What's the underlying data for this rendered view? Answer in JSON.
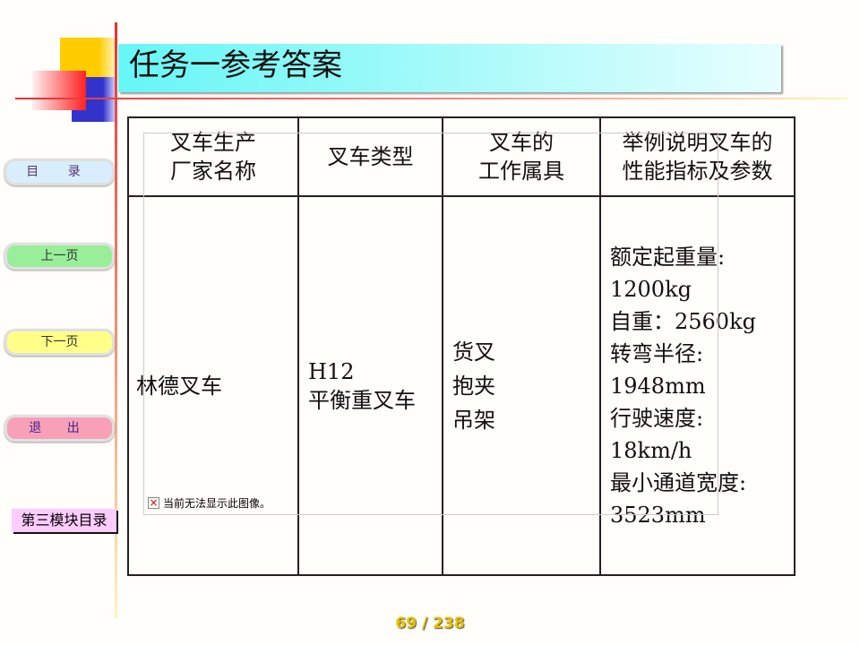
{
  "title": "任务一参考答案",
  "nav": {
    "toc": "目 录",
    "prev": "上一页",
    "next": "下一页",
    "exit": "退 出",
    "module_toc": "第三模块目录"
  },
  "broken_image_text": "当前无法显示此图像。",
  "table": {
    "headers": [
      [
        "叉车生产",
        "厂家名称"
      ],
      [
        "叉车类型"
      ],
      [
        "叉车的",
        "工作属具"
      ],
      [
        "举例说明叉车的",
        "性能指标及参数"
      ]
    ],
    "row": {
      "maker": "林德叉车",
      "type": [
        "H12",
        "平衡重叉车"
      ],
      "attachments": [
        "货叉",
        "抱夹",
        "吊架"
      ],
      "specs": [
        "额定起重量:",
        "1200kg",
        "自重：2560kg",
        "转弯半径:",
        "1948mm",
        "行驶速度:",
        "18km/h",
        "最小通道宽度:",
        "3523mm"
      ]
    }
  },
  "page_indicator": "69 / 238"
}
